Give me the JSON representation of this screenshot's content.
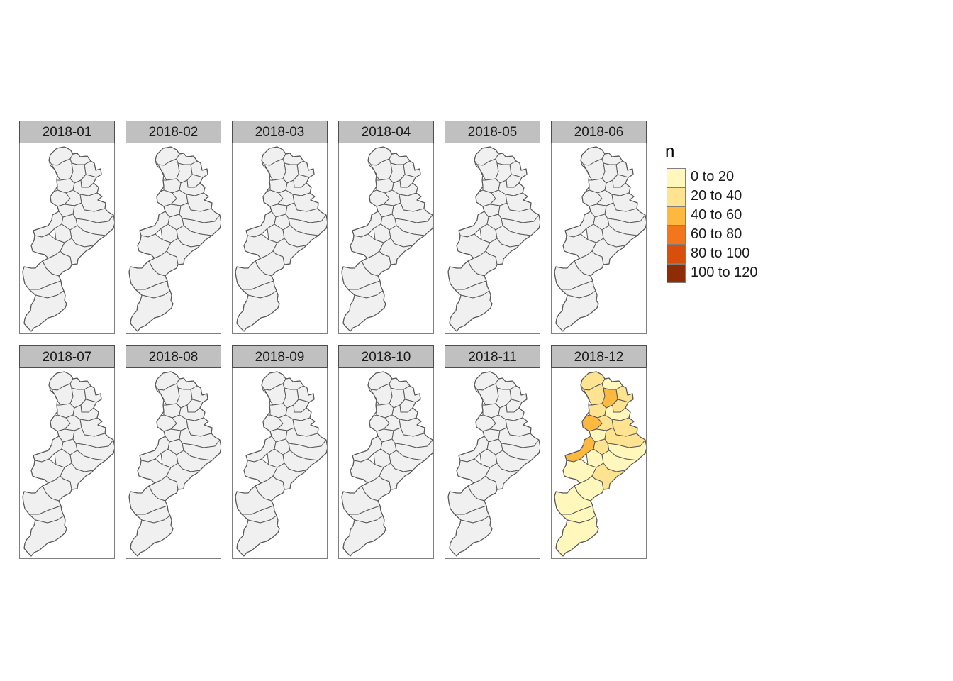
{
  "panels": [
    {
      "label": "2018-01",
      "category": "none"
    },
    {
      "label": "2018-02",
      "category": "none"
    },
    {
      "label": "2018-03",
      "category": "none"
    },
    {
      "label": "2018-04",
      "category": "none"
    },
    {
      "label": "2018-05",
      "category": "none"
    },
    {
      "label": "2018-06",
      "category": "none"
    },
    {
      "label": "2018-07",
      "category": "none"
    },
    {
      "label": "2018-08",
      "category": "none"
    },
    {
      "label": "2018-09",
      "category": "none"
    },
    {
      "label": "2018-10",
      "category": "none"
    },
    {
      "label": "2018-11",
      "category": "none"
    },
    {
      "label": "2018-12",
      "category": "data"
    }
  ],
  "legend": {
    "title": "n",
    "items": [
      {
        "label": "0 to 20",
        "color": "#ffffcc"
      },
      {
        "label": "20 to 40",
        "color": "#fee391"
      },
      {
        "label": "40 to 60",
        "color": "#fec44f"
      },
      {
        "label": "60 to 80",
        "color": "#fe9929"
      },
      {
        "label": "80 to 100",
        "color": "#ec7014"
      },
      {
        "label": "100 to 120",
        "color": "#cc4c02"
      }
    ]
  },
  "colors": {
    "no_data_fill": "#f0f0f0",
    "border": "#595959",
    "strip_background": "#c0c0c0",
    "legend_swatches": [
      "#fff7bc",
      "#fee391",
      "#fdb83f",
      "#f3761c",
      "#d84f0c",
      "#8e2c06"
    ]
  },
  "map_2018_12_district_classes": [
    "20 to 40",
    "0 to 20",
    "20 to 40",
    "20 to 40",
    "40 to 60",
    "20 to 40",
    "20 to 40",
    "0 to 20",
    "40 to 60",
    "20 to 40",
    "20 to 40",
    "0 to 20",
    "20 to 40",
    "40 to 60",
    "20 to 40",
    "0 to 20",
    "0 to 20",
    "0 to 20",
    "0 to 20",
    "20 to 40",
    "0 to 20",
    "0 to 20",
    "0 to 20",
    "0 to 20"
  ]
}
